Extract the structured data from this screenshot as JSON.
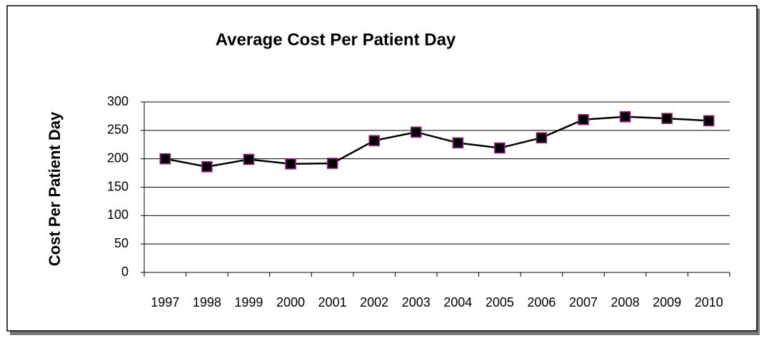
{
  "chart_data": {
    "type": "line",
    "title": "Average Cost Per Patient Day",
    "y_label": "Cost Per Patient Day",
    "categories": [
      "1997",
      "1998",
      "1999",
      "2000",
      "2001",
      "2002",
      "2003",
      "2004",
      "2005",
      "2006",
      "2007",
      "2008",
      "2009",
      "2010"
    ],
    "values": [
      200,
      186,
      199,
      191,
      192,
      232,
      247,
      228,
      219,
      237,
      269,
      274,
      271,
      267
    ],
    "color": "#000000",
    "marker_color": "#000000",
    "marker_edge": "#a0148c",
    "ylim": [
      0,
      300
    ],
    "yticks": [
      0,
      50,
      100,
      150,
      200,
      250,
      300
    ],
    "grid": true
  }
}
